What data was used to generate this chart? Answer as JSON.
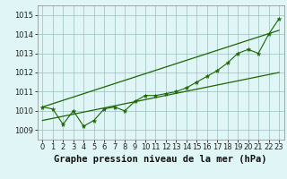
{
  "title": "Graphe pression niveau de la mer (hPa)",
  "x_values": [
    0,
    1,
    2,
    3,
    4,
    5,
    6,
    7,
    8,
    9,
    10,
    11,
    12,
    13,
    14,
    15,
    16,
    17,
    18,
    19,
    20,
    21,
    22,
    23
  ],
  "y_values": [
    1010.2,
    1010.1,
    1009.3,
    1010.0,
    1009.2,
    1009.5,
    1010.1,
    1010.2,
    1010.0,
    1010.5,
    1010.8,
    1010.8,
    1010.9,
    1011.0,
    1011.2,
    1011.5,
    1011.8,
    1012.1,
    1012.5,
    1013.0,
    1013.2,
    1013.0,
    1014.0,
    1014.8
  ],
  "ylim": [
    1008.5,
    1015.5
  ],
  "xlim": [
    -0.5,
    23.5
  ],
  "yticks": [
    1009,
    1010,
    1011,
    1012,
    1013,
    1014,
    1015
  ],
  "xticks": [
    0,
    1,
    2,
    3,
    4,
    5,
    6,
    7,
    8,
    9,
    10,
    11,
    12,
    13,
    14,
    15,
    16,
    17,
    18,
    19,
    20,
    21,
    22,
    23
  ],
  "line_color": "#1a6600",
  "marker_color": "#1a6600",
  "bg_color": "#e0f5f5",
  "grid_color": "#9bbfbf",
  "trend_color": "#1a6600",
  "title_fontsize": 7.5,
  "tick_fontsize": 6.0,
  "trend_lower": [
    1009.5,
    1012.0
  ],
  "trend_upper": [
    1010.2,
    1014.2
  ],
  "trend_x_start": 0,
  "trend_x_end": 23
}
